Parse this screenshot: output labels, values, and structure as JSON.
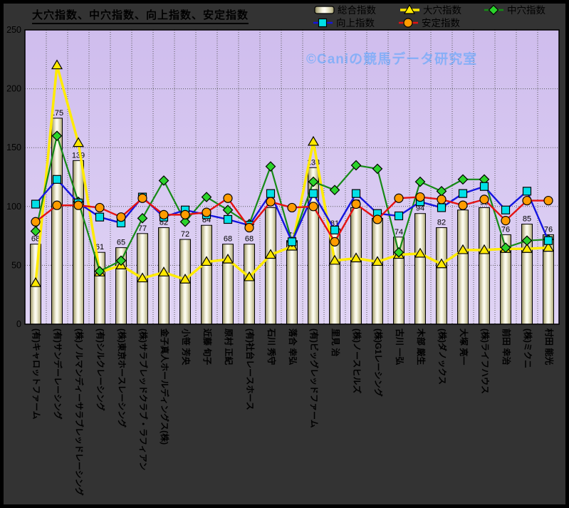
{
  "title": "大穴指数、中穴指数、向上指数、安定指数",
  "watermark": "©Caniの競馬データ研究室",
  "legend": {
    "items": [
      {
        "label": "総合指数",
        "swatch": "bar"
      },
      {
        "label": "大穴指数",
        "swatch": "triangle"
      },
      {
        "label": "中穴指数",
        "swatch": "diamond"
      },
      {
        "label": "向上指数",
        "swatch": "square"
      },
      {
        "label": "安定指数",
        "swatch": "circle"
      }
    ]
  },
  "axis": {
    "y_ticks": [
      0,
      50,
      100,
      150,
      200,
      250
    ],
    "y_max": 250
  },
  "colors": {
    "plot_bg_top": "#cfbded",
    "plot_bg_bottom": "#e0d4f5",
    "grid": "#5a5a5a",
    "bar_edge": "#000000",
    "yellow_line": "#ffeb00",
    "yellow_marker": "#ffe800",
    "green_line": "#168a16",
    "green_marker": "#2bd32b",
    "blue_line": "#1515e0",
    "blue_marker": "#00e0e8",
    "red_line": "#e51212",
    "red_marker": "#ff9c00"
  },
  "chart_data": {
    "type": "bar",
    "title": "大穴指数、中穴指数、向上指数、安定指数",
    "xlabel": "",
    "ylabel": "",
    "ylim": [
      0,
      250
    ],
    "grid": true,
    "legend_position": "top",
    "categories": [
      "(有)キャロットファーム",
      "(有)サンデーレーシング",
      "(株)ノルマンディーサラブレッドレーシング",
      "(有)シルクレーシング",
      "(株)東京ホースレーシング",
      "(株)サラブレッドクラブ・ラフィアン",
      "金子真人ホールディングス(株)",
      "小笹 芳央",
      "近藤 旬子",
      "原村 正紀",
      "(有)社台レースホース",
      "石川 秀守",
      "落合 幸弘",
      "(有)ビッグレッドファーム",
      "里見 治",
      "(株)ノースヒルズ",
      "(株)G1レーシング",
      "古川 一弘",
      "木部 厳生",
      "(株)ダノックス",
      "大塚 亮一",
      "(株)ライフハウス",
      "前田 幸治",
      "(株)ミクニ",
      "村田 能光"
    ],
    "series": [
      {
        "name": "総合指数",
        "type": "bar",
        "marker": "none",
        "values": [
          68,
          175,
          139,
          61,
          65,
          77,
          82,
          72,
          84,
          68,
          68,
          99,
          71,
          133,
          81,
          99,
          90,
          74,
          94,
          82,
          97,
          99,
          76,
          85,
          76
        ],
        "labels_shown": true
      },
      {
        "name": "大穴指数",
        "type": "line",
        "marker": "triangle",
        "values": [
          35,
          220,
          154,
          44,
          50,
          39,
          44,
          38,
          53,
          55,
          40,
          59,
          66,
          155,
          54,
          56,
          53,
          59,
          60,
          51,
          63,
          63,
          64,
          64,
          65
        ]
      },
      {
        "name": "中穴指数",
        "type": "line",
        "marker": "diamond",
        "values": [
          79,
          160,
          104,
          45,
          54,
          90,
          122,
          87,
          108,
          97,
          85,
          134,
          70,
          121,
          114,
          135,
          132,
          61,
          121,
          113,
          123,
          123,
          65,
          71,
          72
        ]
      },
      {
        "name": "向上指数",
        "type": "line",
        "marker": "square",
        "values": [
          102,
          123,
          103,
          91,
          86,
          108,
          91,
          97,
          93,
          89,
          84,
          111,
          70,
          111,
          80,
          111,
          94,
          92,
          104,
          99,
          111,
          117,
          97,
          113,
          71
        ]
      },
      {
        "name": "安定指数",
        "type": "line",
        "marker": "circle",
        "values": [
          87,
          101,
          101,
          99,
          91,
          107,
          93,
          93,
          95,
          107,
          82,
          104,
          99,
          100,
          70,
          102,
          89,
          107,
          108,
          106,
          101,
          106,
          88,
          105,
          105
        ]
      }
    ]
  }
}
